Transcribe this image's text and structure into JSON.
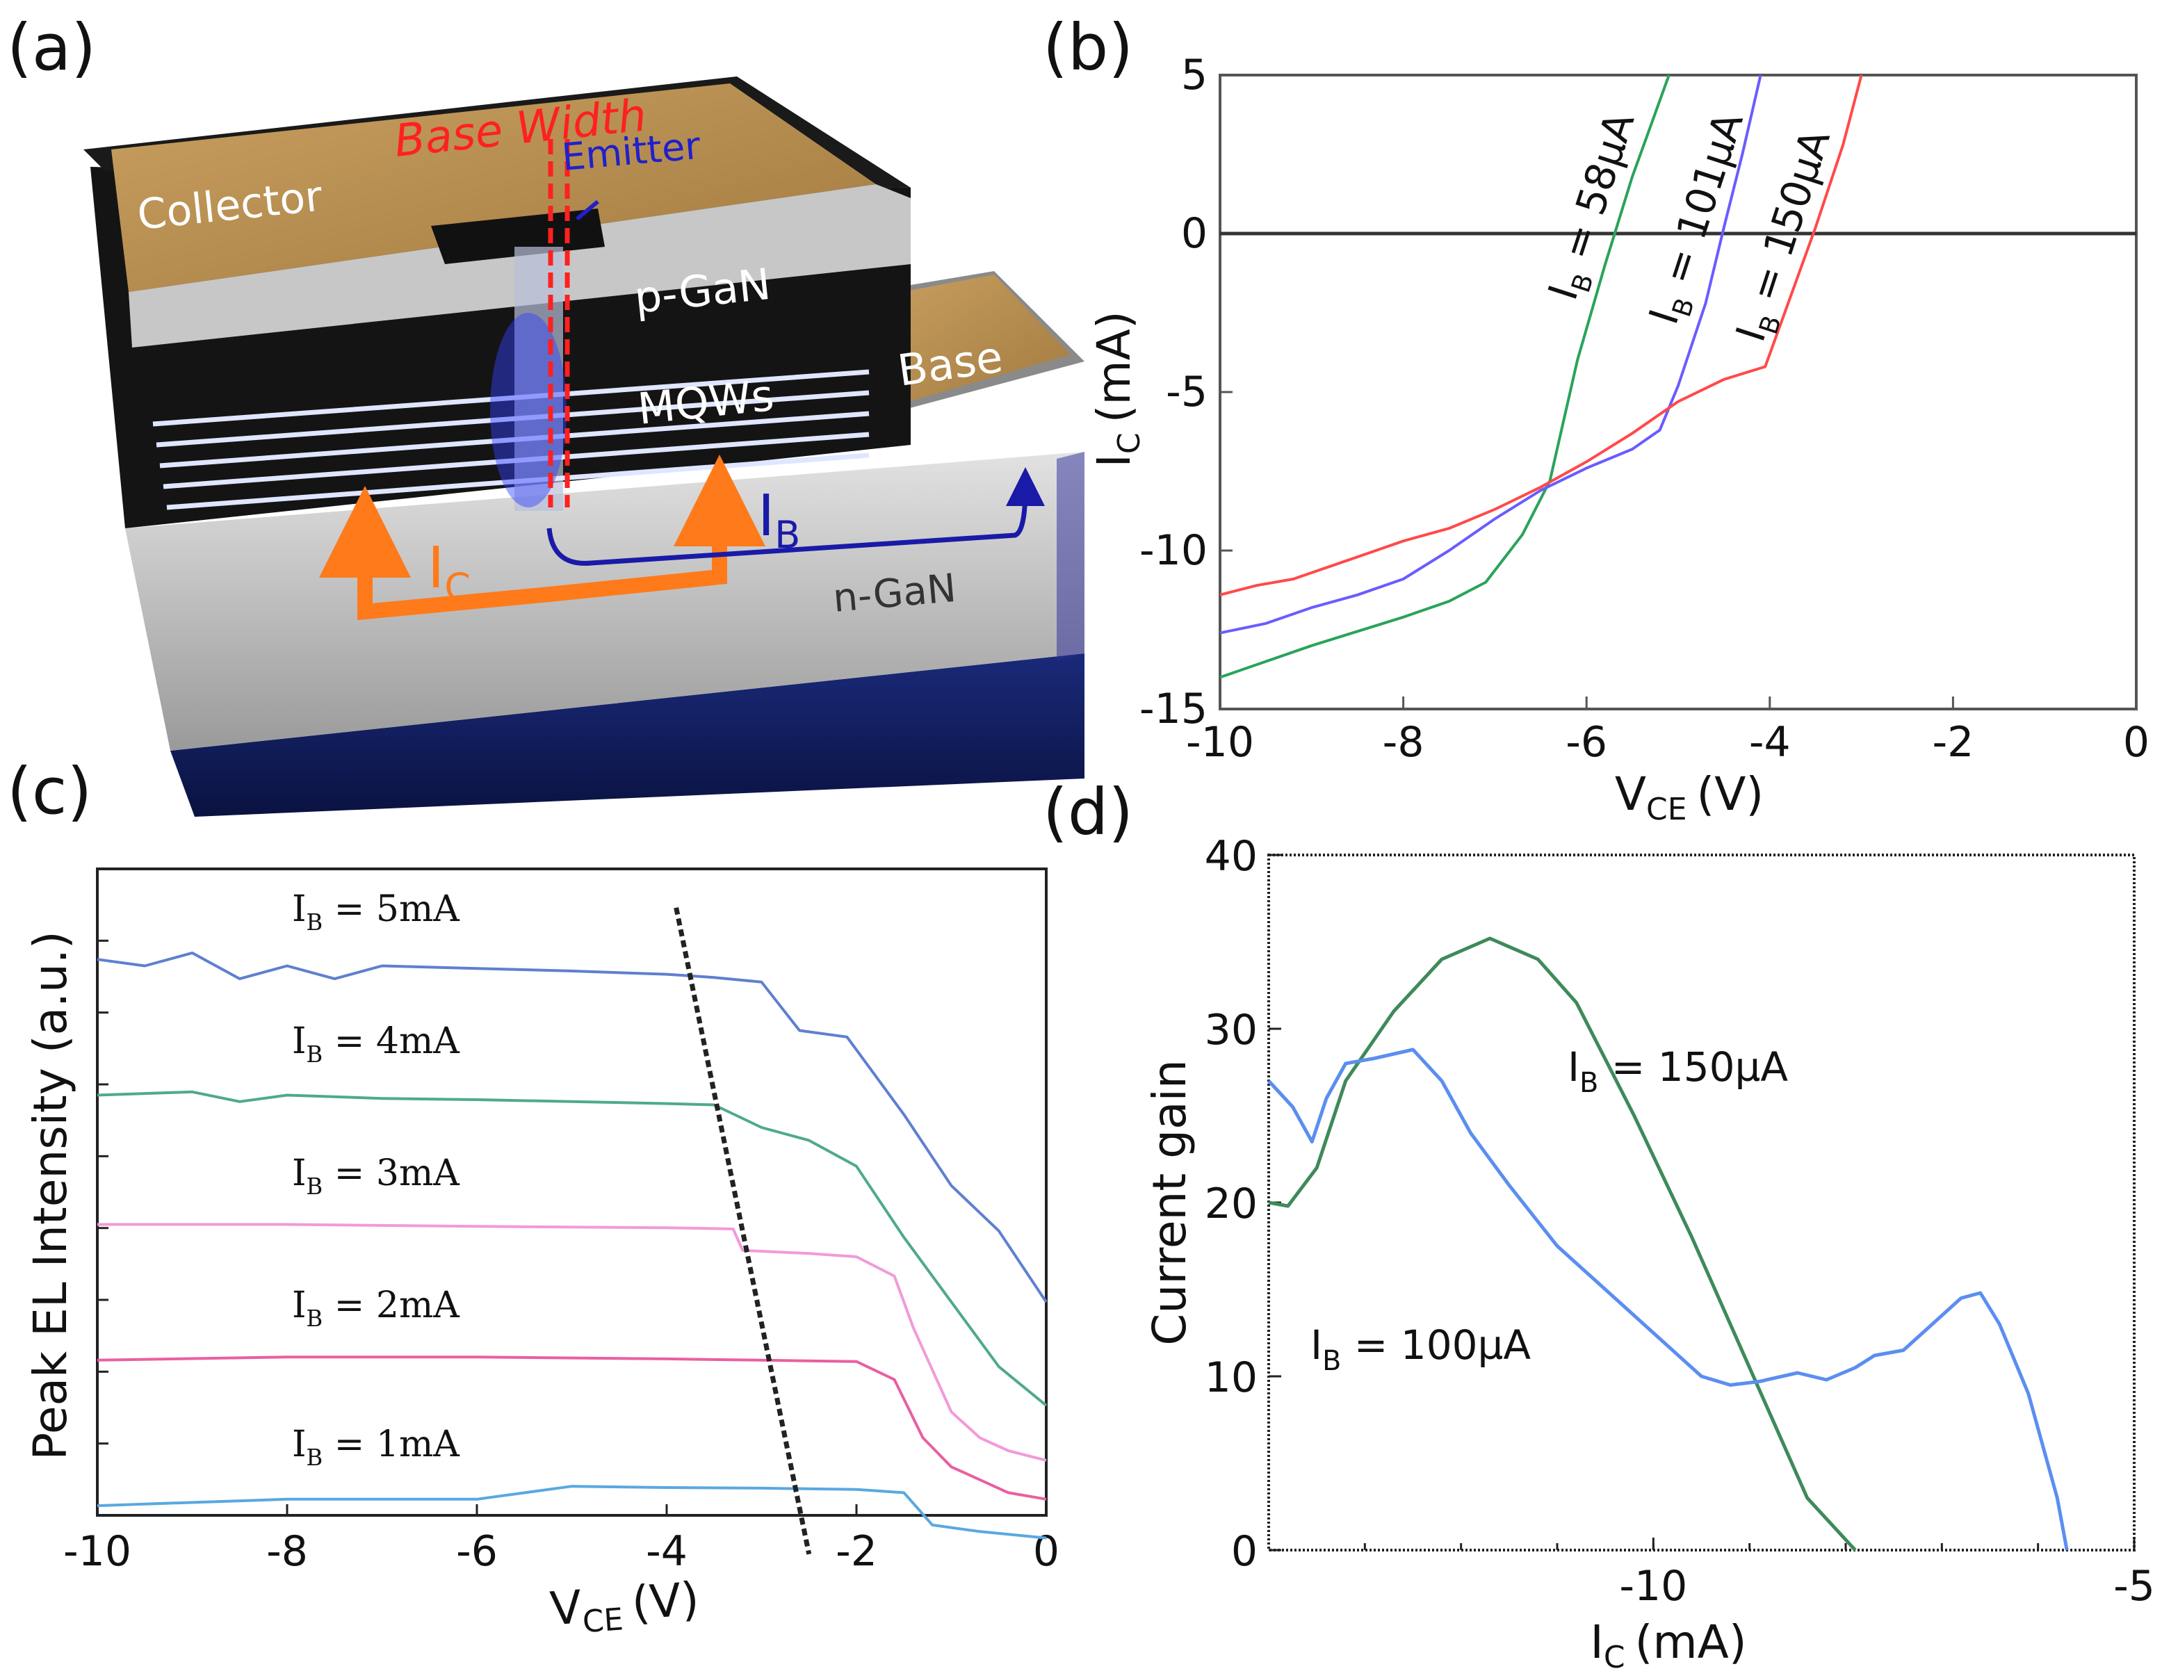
{
  "panels": {
    "a": "(a)",
    "b": "(b)",
    "c": "(c)",
    "d": "(d)"
  },
  "device": {
    "collector": "Collector",
    "base_width": "Base Width",
    "emitter": "Emitter",
    "p_gan": "p-GaN",
    "mqws": "MQWs",
    "base": "Base",
    "n_gan": "n-GaN",
    "ic_main": "I",
    "ic_sub": "C",
    "ib_main": "I",
    "ib_sub": "B"
  },
  "colors": {
    "green": "#2aa35a",
    "blue": "#6a5cff",
    "red": "#ff4a4a",
    "gold": "#b88f4e",
    "orange": "#ff7a1a",
    "navy": "#1a1aa8"
  },
  "chart_data": [
    {
      "id": "b",
      "type": "line",
      "title": "",
      "xlabel_main": "V",
      "xlabel_sub": "CE",
      "xlabel_unit": "(V)",
      "ylabel_main": "I",
      "ylabel_sub": "C",
      "ylabel_unit": "(mA)",
      "xlim": [
        -10,
        0
      ],
      "ylim": [
        -15,
        5
      ],
      "xticks": [
        -10,
        -8,
        -6,
        -4,
        -2,
        0
      ],
      "yticks": [
        -15,
        -10,
        -5,
        0,
        5
      ],
      "hline": 0,
      "series": [
        {
          "name": "IB = 58µA",
          "label_main": "I",
          "label_sub": "B",
          "label_rest": " = 58µA",
          "color": "#2aa35a",
          "x": [
            -10,
            -9,
            -8,
            -7.5,
            -7.1,
            -6.7,
            -6.4,
            -6.1,
            -5.8,
            -5.5,
            -5.3,
            -5.1
          ],
          "y": [
            -14,
            -13,
            -12.1,
            -11.6,
            -11,
            -9.5,
            -7.8,
            -4,
            -1,
            1.8,
            3.4,
            5
          ]
        },
        {
          "name": "IB = 101µA",
          "label_main": "I",
          "label_sub": "B",
          "label_rest": " = 101µA",
          "color": "#6a5cff",
          "x": [
            -10,
            -9.5,
            -9,
            -8.5,
            -8,
            -7.5,
            -7,
            -6.5,
            -6,
            -5.5,
            -5.2,
            -5.0,
            -4.7,
            -4.5,
            -4.3,
            -4.1
          ],
          "y": [
            -12.6,
            -12.3,
            -11.8,
            -11.4,
            -10.9,
            -10,
            -9,
            -8.1,
            -7.4,
            -6.8,
            -6.2,
            -4.8,
            -2.2,
            0.2,
            2.5,
            5
          ]
        },
        {
          "name": "IB = 150µA",
          "label_main": "I",
          "label_sub": "B",
          "label_rest": " = 150µA",
          "color": "#ff4a4a",
          "x": [
            -10,
            -9.6,
            -9.2,
            -8.8,
            -8.4,
            -8,
            -7.5,
            -7,
            -6.5,
            -6,
            -5.5,
            -5,
            -4.5,
            -4.05,
            -3.8,
            -3.5,
            -3.2,
            -3.0
          ],
          "y": [
            -11.4,
            -11.1,
            -10.9,
            -10.5,
            -10.1,
            -9.7,
            -9.3,
            -8.7,
            -8,
            -7.2,
            -6.3,
            -5.3,
            -4.6,
            -4.2,
            -2.2,
            0.2,
            2.8,
            5
          ]
        }
      ]
    },
    {
      "id": "c",
      "type": "line",
      "title": "",
      "xlabel_main": "V",
      "xlabel_sub": "CE",
      "xlabel_unit": "(V)",
      "ylabel": "Peak EL Intensity (a.u.)",
      "xlim": [
        -10,
        0
      ],
      "ylim": [
        0,
        100
      ],
      "xticks": [
        -10,
        -8,
        -6,
        -4,
        -2,
        0
      ],
      "y_tick_count": 8,
      "series": [
        {
          "name": "IB = 5mA",
          "label_main": "I",
          "label_sub": "B",
          "label_rest": " = 5mA",
          "color": "#5f7fd0",
          "x": [
            -10,
            -9.5,
            -9,
            -8.5,
            -8,
            -7.5,
            -7,
            -6,
            -5,
            -4,
            -3.5,
            -3,
            -2.6,
            -2.1,
            -1.5,
            -1.0,
            -0.5,
            0
          ],
          "y": [
            86,
            85,
            87,
            83,
            85,
            83,
            85,
            84.6,
            84.2,
            83.7,
            83.2,
            82.5,
            75,
            74,
            62,
            51,
            44,
            33
          ]
        },
        {
          "name": "IB = 4mA",
          "label_main": "I",
          "label_sub": "B",
          "label_rest": " = 4mA",
          "color": "#4faa8a",
          "x": [
            -10,
            -9,
            -8.5,
            -8,
            -7,
            -6,
            -5,
            -4,
            -3.5,
            -3,
            -2.5,
            -2,
            -1.5,
            -1,
            -0.5,
            0
          ],
          "y": [
            65,
            65.5,
            64,
            65,
            64.5,
            64.3,
            64,
            63.7,
            63.5,
            60,
            58,
            54,
            43,
            33,
            23,
            17
          ]
        },
        {
          "name": "IB = 3mA",
          "label_main": "I",
          "label_sub": "B",
          "label_rest": " = 3mA",
          "color": "#f29ad8",
          "x": [
            -10,
            -8,
            -6,
            -4,
            -3.3,
            -3.2,
            -2.5,
            -2,
            -1.6,
            -1.4,
            -1.0,
            -0.7,
            -0.4,
            0
          ],
          "y": [
            45,
            45,
            44.7,
            44.5,
            44.3,
            41,
            40.5,
            40,
            37,
            29,
            16,
            12,
            10,
            8.5
          ]
        },
        {
          "name": "IB = 2mA",
          "label_main": "I",
          "label_sub": "B",
          "label_rest": " = 2mA",
          "color": "#ea5fa0",
          "x": [
            -10,
            -8,
            -6,
            -4,
            -3,
            -2,
            -1.6,
            -1.3,
            -1.0,
            -0.7,
            -0.4,
            0
          ],
          "y": [
            24,
            24.5,
            24.5,
            24.2,
            24,
            23.8,
            21,
            12,
            7.5,
            5.5,
            3.5,
            2.5
          ]
        },
        {
          "name": "IB = 1mA",
          "label_main": "I",
          "label_sub": "B",
          "label_rest": " = 1mA",
          "color": "#5aa8e0",
          "x": [
            -10,
            -8,
            -6,
            -5,
            -4,
            -3,
            -2,
            -1.5,
            -1.2,
            -0.7,
            0
          ],
          "y": [
            1.5,
            2.5,
            2.5,
            4.5,
            4.3,
            4.2,
            4,
            3.5,
            -1.5,
            -2.5,
            -3.5
          ]
        }
      ],
      "dashed_line": {
        "x": [
          -3.9,
          -2.5
        ],
        "y": [
          94,
          -6
        ]
      }
    },
    {
      "id": "d",
      "type": "line",
      "title": "",
      "xlabel_main": "I",
      "xlabel_sub": "C",
      "xlabel_unit": "(mA)",
      "ylabel": "Current gain",
      "xlim": [
        -14,
        -5
      ],
      "ylim": [
        0,
        40
      ],
      "xticks": [
        -10,
        -5
      ],
      "yticks": [
        0,
        10,
        20,
        30,
        40
      ],
      "series": [
        {
          "name": "IB = 150µA",
          "label_main": "I",
          "label_sub": "B",
          "label_rest": " = 150µA",
          "color": "#3e8a5a",
          "x": [
            -14,
            -13.8,
            -13.5,
            -13.2,
            -12.7,
            -12.2,
            -11.7,
            -11.2,
            -10.8,
            -10.2,
            -9.6,
            -9.0,
            -8.4,
            -7.9
          ],
          "y": [
            20,
            19.8,
            22,
            27,
            31,
            34,
            35.2,
            34,
            31.5,
            25,
            18,
            10.5,
            3,
            0
          ]
        },
        {
          "name": "IB = 100µA",
          "label_main": "I",
          "label_sub": "B",
          "label_rest": " = 100µA",
          "color": "#5b8ef0",
          "x": [
            -14,
            -13.75,
            -13.55,
            -13.4,
            -13.2,
            -12.9,
            -12.5,
            -12.2,
            -11.9,
            -11.5,
            -11.0,
            -10.5,
            -10.0,
            -9.5,
            -9.2,
            -8.9,
            -8.5,
            -8.2,
            -7.9,
            -7.7,
            -7.4,
            -7.2,
            -6.8,
            -6.6,
            -6.4,
            -6.1,
            -5.8,
            -5.7
          ],
          "y": [
            27,
            25.5,
            23.5,
            26,
            28,
            28.3,
            28.8,
            27,
            24,
            21,
            17.5,
            15,
            12.5,
            10,
            9.5,
            9.7,
            10.2,
            9.8,
            10.5,
            11.2,
            11.5,
            12.5,
            14.5,
            14.8,
            13,
            9,
            3,
            0
          ]
        }
      ]
    }
  ]
}
